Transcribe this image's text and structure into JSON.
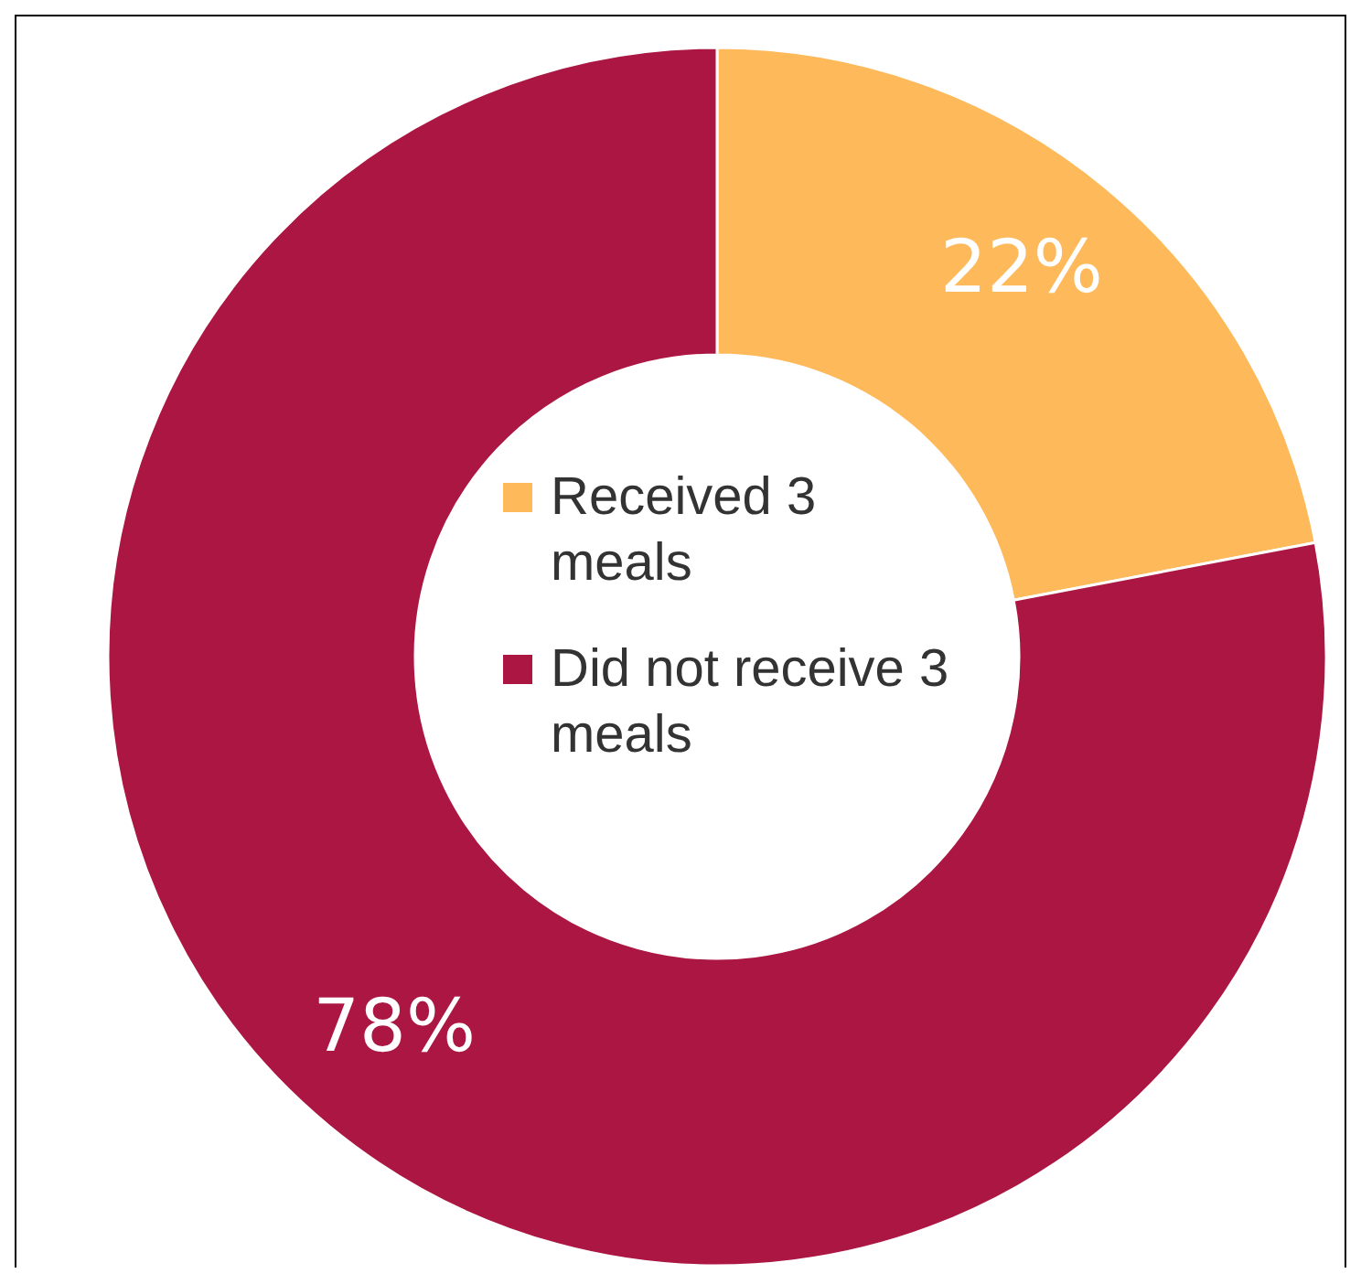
{
  "chart_data": {
    "type": "donut",
    "categories": [
      "Received 3 meals",
      "Did not receive 3 meals"
    ],
    "values": [
      22,
      78
    ],
    "colors": [
      "#fdb95a",
      "#ab1642"
    ],
    "value_labels": [
      "22%",
      "78%"
    ],
    "legend": "center"
  }
}
